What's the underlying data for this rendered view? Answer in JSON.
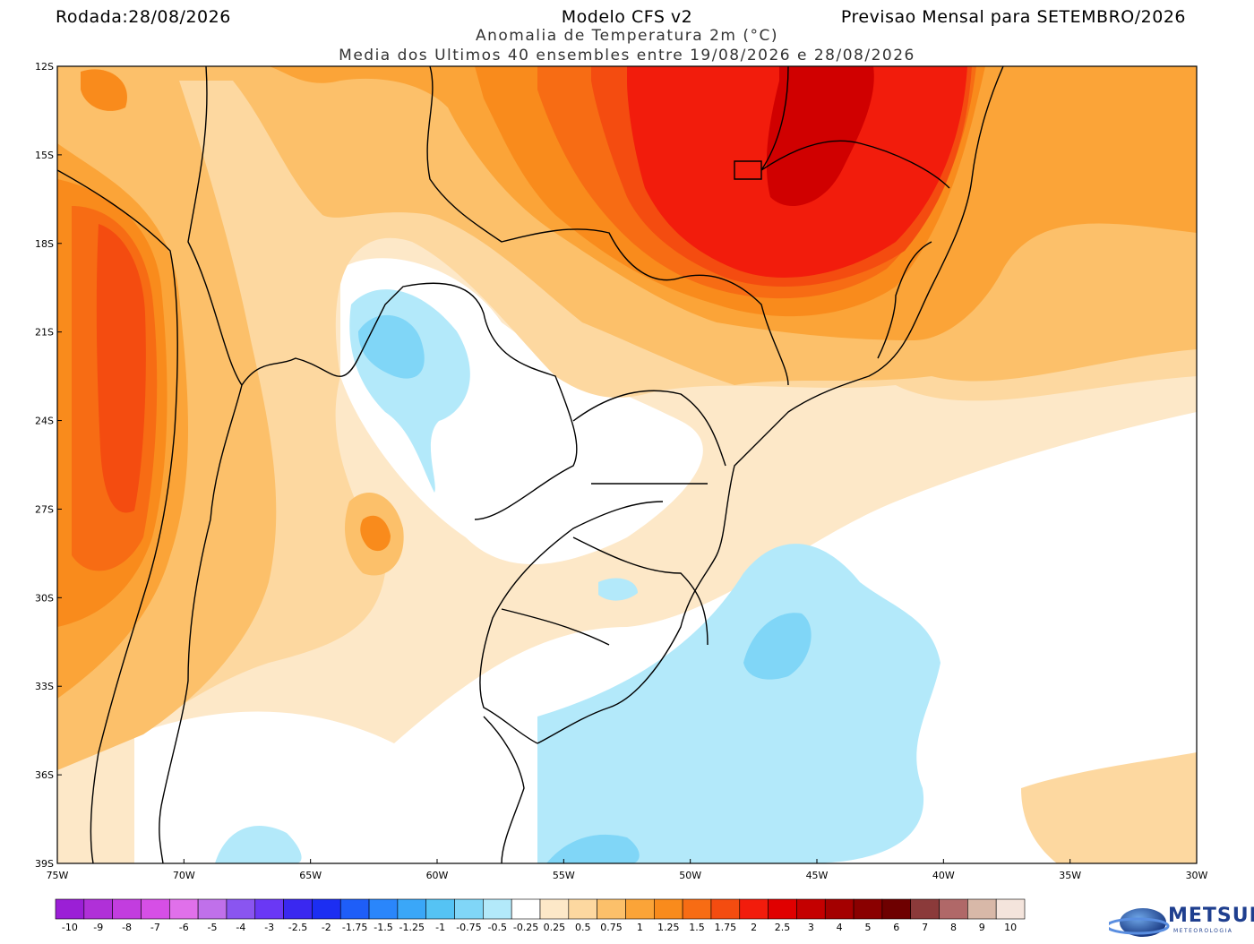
{
  "header": {
    "run_label": "Rodada:28/08/2026",
    "model": "Modelo CFS v2",
    "forecast": "Previsao Mensal para SETEMBRO/2026",
    "variable": "Anomalia de Temperatura 2m (°C)",
    "ensemble": "Media dos Ultimos 40 ensembles entre 19/08/2026 e 28/08/2026"
  },
  "axes": {
    "lat_labels": [
      "12S",
      "15S",
      "18S",
      "21S",
      "24S",
      "27S",
      "30S",
      "33S",
      "36S",
      "39S"
    ],
    "lon_labels": [
      "75W",
      "70W",
      "65W",
      "60W",
      "55W",
      "50W",
      "45W",
      "40W",
      "35W",
      "30W"
    ]
  },
  "colorbar": {
    "labels": [
      "-10",
      "-9",
      "-8",
      "-7",
      "-6",
      "-5",
      "-4",
      "-3",
      "-2.5",
      "-2",
      "-1.75",
      "-1.5",
      "-1.25",
      "-1",
      "-0.75",
      "-0.5",
      "-0.25",
      "0.25",
      "0.5",
      "0.75",
      "1",
      "1.25",
      "1.5",
      "1.75",
      "2",
      "2.5",
      "3",
      "4",
      "5",
      "6",
      "7",
      "8",
      "9",
      "10"
    ],
    "colors": [
      "#9b1fd6",
      "#b030d8",
      "#c23ddf",
      "#d64fe6",
      "#e070ea",
      "#c070ea",
      "#8a55f0",
      "#6a38f5",
      "#3a28f0",
      "#1c2ef2",
      "#1e5ef8",
      "#2a86fb",
      "#3aa7f8",
      "#55c3f4",
      "#80d6f7",
      "#b3e9fa",
      "#ffffff",
      "#fde8c8",
      "#fdd8a0",
      "#fcc06a",
      "#fba438",
      "#f98b1c",
      "#f76c14",
      "#f44c10",
      "#f21c0c",
      "#e00000",
      "#c40000",
      "#a40000",
      "#8a0000",
      "#6e0000",
      "#8b3a3a",
      "#b06868",
      "#d8b8a8",
      "#f4e4dc"
    ]
  },
  "logo": {
    "name": "METSUL",
    "sub": "METEOROLOGIA"
  }
}
